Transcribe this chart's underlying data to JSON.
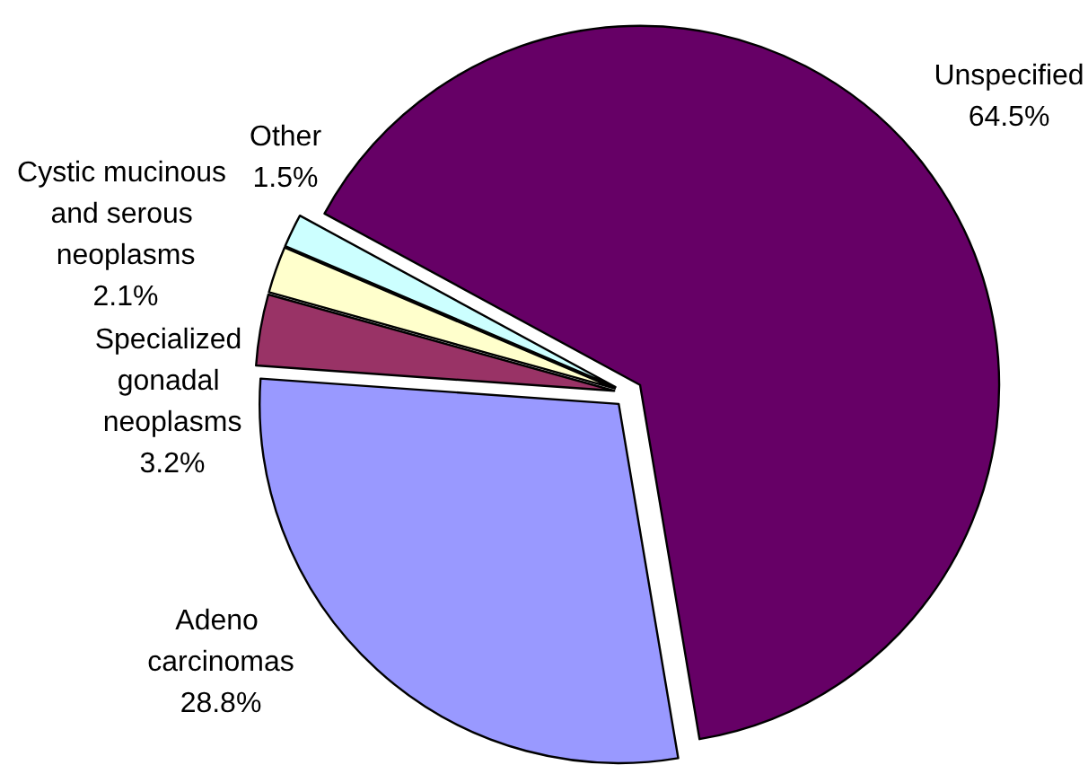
{
  "chart_data": {
    "type": "pie",
    "categories": [
      "Unspecified",
      "Adeno carcinomas",
      "Specialized gonadal neoplasms",
      "Cystic mucinous and serous neoplasms",
      "Other"
    ],
    "values": [
      64.5,
      28.8,
      3.2,
      2.1,
      1.5
    ],
    "colors": [
      "#660066",
      "#9999ff",
      "#993366",
      "#ffffcc",
      "#ccffff"
    ],
    "value_labels": [
      "64.5%",
      "28.8%",
      "3.2%",
      "2.1%",
      "1.5%"
    ]
  }
}
